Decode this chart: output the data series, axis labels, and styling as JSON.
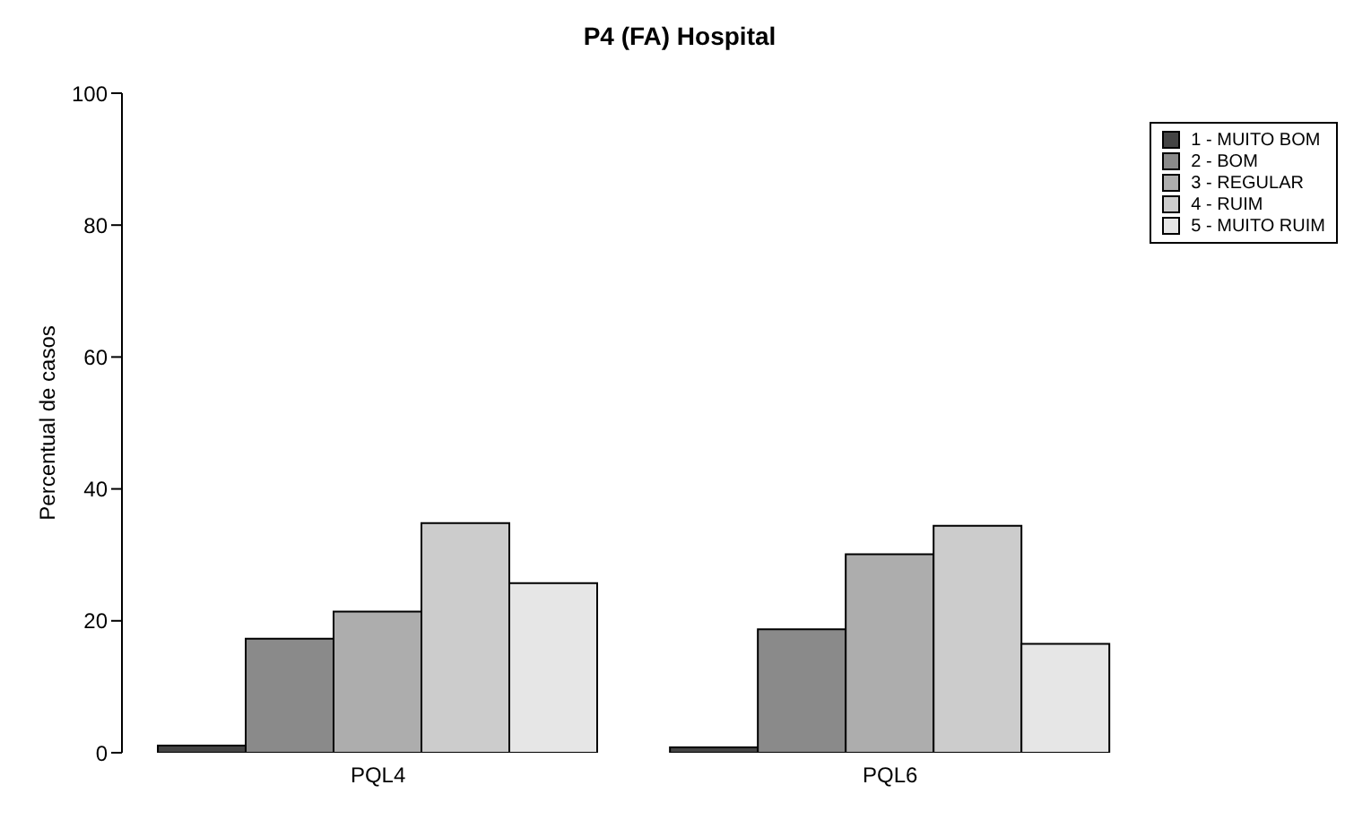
{
  "chart_data": {
    "type": "bar",
    "title": "P4 (FA) Hospital",
    "ylabel": "Percentual de casos",
    "categories": [
      "PQL4",
      "PQL6"
    ],
    "series": [
      {
        "name": "1 - MUITO BOM",
        "color": "#444444",
        "values": [
          1.1,
          0.8
        ]
      },
      {
        "name": "2 - BOM",
        "color": "#8a8a8a",
        "values": [
          17.3,
          18.7
        ]
      },
      {
        "name": "3 - REGULAR",
        "color": "#adadad",
        "values": [
          21.4,
          30.1
        ]
      },
      {
        "name": "4 - RUIM",
        "color": "#cccccc",
        "values": [
          34.8,
          34.4
        ]
      },
      {
        "name": "5 - MUITO RUIM",
        "color": "#e6e6e6",
        "values": [
          25.7,
          16.5
        ]
      }
    ],
    "ylim": [
      0,
      100
    ],
    "yticks": [
      0,
      20,
      40,
      60,
      80,
      100
    ],
    "grid": false,
    "legend": "top right"
  }
}
